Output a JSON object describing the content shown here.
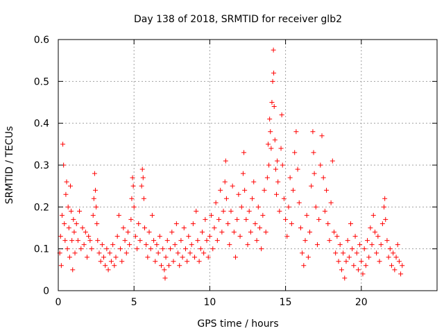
{
  "chart_data": {
    "type": "scatter",
    "title": "Day 138 of 2018, SRMTID for receiver glb2",
    "xlabel": "GPS time / hours",
    "ylabel": "SRMTID / TECUs",
    "xlim": [
      0,
      25
    ],
    "ylim": [
      0,
      0.6
    ],
    "xticks": [
      0,
      5,
      10,
      15,
      20
    ],
    "yticks": [
      0,
      0.1,
      0.2,
      0.3,
      0.4,
      0.5,
      0.6
    ],
    "xtick_labels": [
      "0",
      "5",
      "10",
      "15",
      "20"
    ],
    "ytick_labels": [
      "0",
      "0.1",
      "0.2",
      "0.3",
      "0.4",
      "0.5",
      "0.6"
    ],
    "grid": true,
    "marker": "+",
    "series": [
      {
        "name": "SRMTID",
        "color": "#ff0000",
        "points": [
          [
            0.1,
            0.09
          ],
          [
            0.15,
            0.13
          ],
          [
            0.2,
            0.06
          ],
          [
            0.25,
            0.18
          ],
          [
            0.3,
            0.35
          ],
          [
            0.35,
            0.3
          ],
          [
            0.4,
            0.16
          ],
          [
            0.45,
            0.12
          ],
          [
            0.5,
            0.23
          ],
          [
            0.55,
            0.26
          ],
          [
            0.6,
            0.1
          ],
          [
            0.65,
            0.2
          ],
          [
            0.7,
            0.15
          ],
          [
            0.75,
            0.08
          ],
          [
            0.8,
            0.25
          ],
          [
            0.85,
            0.19
          ],
          [
            0.9,
            0.12
          ],
          [
            0.95,
            0.05
          ],
          [
            1.0,
            0.17
          ],
          [
            1.05,
            0.14
          ],
          [
            1.1,
            0.09
          ],
          [
            1.2,
            0.16
          ],
          [
            1.3,
            0.12
          ],
          [
            1.4,
            0.19
          ],
          [
            1.5,
            0.1
          ],
          [
            1.6,
            0.15
          ],
          [
            1.7,
            0.11
          ],
          [
            1.8,
            0.14
          ],
          [
            1.9,
            0.08
          ],
          [
            2.0,
            0.13
          ],
          [
            2.1,
            0.12
          ],
          [
            2.2,
            0.1
          ],
          [
            2.3,
            0.18
          ],
          [
            2.35,
            0.22
          ],
          [
            2.4,
            0.28
          ],
          [
            2.45,
            0.24
          ],
          [
            2.5,
            0.2
          ],
          [
            2.55,
            0.16
          ],
          [
            2.6,
            0.12
          ],
          [
            2.7,
            0.09
          ],
          [
            2.8,
            0.07
          ],
          [
            2.9,
            0.11
          ],
          [
            3.0,
            0.08
          ],
          [
            3.1,
            0.06
          ],
          [
            3.2,
            0.1
          ],
          [
            3.3,
            0.05
          ],
          [
            3.4,
            0.09
          ],
          [
            3.5,
            0.07
          ],
          [
            3.6,
            0.11
          ],
          [
            3.7,
            0.06
          ],
          [
            3.8,
            0.08
          ],
          [
            3.9,
            0.13
          ],
          [
            4.0,
            0.18
          ],
          [
            4.1,
            0.1
          ],
          [
            4.2,
            0.07
          ],
          [
            4.3,
            0.15
          ],
          [
            4.4,
            0.12
          ],
          [
            4.5,
            0.09
          ],
          [
            4.6,
            0.14
          ],
          [
            4.7,
            0.11
          ],
          [
            4.8,
            0.17
          ],
          [
            4.85,
            0.22
          ],
          [
            4.9,
            0.27
          ],
          [
            4.95,
            0.25
          ],
          [
            5.0,
            0.2
          ],
          [
            5.1,
            0.13
          ],
          [
            5.2,
            0.1
          ],
          [
            5.3,
            0.16
          ],
          [
            5.4,
            0.12
          ],
          [
            5.5,
            0.25
          ],
          [
            5.55,
            0.29
          ],
          [
            5.6,
            0.27
          ],
          [
            5.65,
            0.22
          ],
          [
            5.7,
            0.15
          ],
          [
            5.8,
            0.11
          ],
          [
            5.9,
            0.08
          ],
          [
            6.0,
            0.14
          ],
          [
            6.1,
            0.1
          ],
          [
            6.2,
            0.18
          ],
          [
            6.3,
            0.12
          ],
          [
            6.4,
            0.07
          ],
          [
            6.5,
            0.11
          ],
          [
            6.6,
            0.09
          ],
          [
            6.7,
            0.13
          ],
          [
            6.8,
            0.06
          ],
          [
            6.9,
            0.1
          ],
          [
            7.0,
            0.05
          ],
          [
            7.05,
            0.03
          ],
          [
            7.1,
            0.08
          ],
          [
            7.2,
            0.12
          ],
          [
            7.3,
            0.06
          ],
          [
            7.4,
            0.1
          ],
          [
            7.5,
            0.14
          ],
          [
            7.6,
            0.07
          ],
          [
            7.7,
            0.11
          ],
          [
            7.8,
            0.16
          ],
          [
            7.9,
            0.09
          ],
          [
            8.0,
            0.06
          ],
          [
            8.1,
            0.12
          ],
          [
            8.2,
            0.08
          ],
          [
            8.3,
            0.15
          ],
          [
            8.4,
            0.1
          ],
          [
            8.5,
            0.07
          ],
          [
            8.6,
            0.13
          ],
          [
            8.7,
            0.09
          ],
          [
            8.8,
            0.11
          ],
          [
            8.9,
            0.16
          ],
          [
            9.0,
            0.08
          ],
          [
            9.1,
            0.19
          ],
          [
            9.2,
            0.12
          ],
          [
            9.3,
            0.07
          ],
          [
            9.4,
            0.1
          ],
          [
            9.5,
            0.14
          ],
          [
            9.6,
            0.09
          ],
          [
            9.7,
            0.17
          ],
          [
            9.8,
            0.12
          ],
          [
            9.9,
            0.08
          ],
          [
            10.0,
            0.13
          ],
          [
            10.1,
            0.18
          ],
          [
            10.2,
            0.1
          ],
          [
            10.3,
            0.15
          ],
          [
            10.4,
            0.21
          ],
          [
            10.5,
            0.12
          ],
          [
            10.6,
            0.17
          ],
          [
            10.7,
            0.24
          ],
          [
            10.8,
            0.14
          ],
          [
            10.9,
            0.19
          ],
          [
            11.0,
            0.26
          ],
          [
            11.05,
            0.31
          ],
          [
            11.1,
            0.22
          ],
          [
            11.2,
            0.16
          ],
          [
            11.3,
            0.11
          ],
          [
            11.4,
            0.19
          ],
          [
            11.5,
            0.25
          ],
          [
            11.6,
            0.14
          ],
          [
            11.7,
            0.08
          ],
          [
            11.8,
            0.17
          ],
          [
            11.9,
            0.23
          ],
          [
            12.0,
            0.13
          ],
          [
            12.1,
            0.2
          ],
          [
            12.2,
            0.28
          ],
          [
            12.25,
            0.33
          ],
          [
            12.3,
            0.24
          ],
          [
            12.4,
            0.17
          ],
          [
            12.5,
            0.11
          ],
          [
            12.6,
            0.19
          ],
          [
            12.7,
            0.14
          ],
          [
            12.8,
            0.22
          ],
          [
            12.9,
            0.26
          ],
          [
            13.0,
            0.16
          ],
          [
            13.1,
            0.12
          ],
          [
            13.2,
            0.2
          ],
          [
            13.3,
            0.15
          ],
          [
            13.4,
            0.1
          ],
          [
            13.5,
            0.18
          ],
          [
            13.6,
            0.24
          ],
          [
            13.7,
            0.14
          ],
          [
            13.8,
            0.27
          ],
          [
            13.85,
            0.35
          ],
          [
            13.9,
            0.3
          ],
          [
            13.95,
            0.41
          ],
          [
            14.0,
            0.38
          ],
          [
            14.05,
            0.34
          ],
          [
            14.1,
            0.45
          ],
          [
            14.15,
            0.5
          ],
          [
            14.2,
            0.575
          ],
          [
            14.22,
            0.52
          ],
          [
            14.25,
            0.44
          ],
          [
            14.3,
            0.36
          ],
          [
            14.35,
            0.29
          ],
          [
            14.4,
            0.23
          ],
          [
            14.45,
            0.31
          ],
          [
            14.5,
            0.26
          ],
          [
            14.6,
            0.19
          ],
          [
            14.7,
            0.34
          ],
          [
            14.75,
            0.42
          ],
          [
            14.8,
            0.3
          ],
          [
            14.9,
            0.22
          ],
          [
            15.0,
            0.17
          ],
          [
            15.1,
            0.13
          ],
          [
            15.2,
            0.2
          ],
          [
            15.3,
            0.27
          ],
          [
            15.4,
            0.16
          ],
          [
            15.5,
            0.24
          ],
          [
            15.6,
            0.33
          ],
          [
            15.7,
            0.38
          ],
          [
            15.8,
            0.29
          ],
          [
            15.9,
            0.21
          ],
          [
            16.0,
            0.15
          ],
          [
            16.1,
            0.09
          ],
          [
            16.2,
            0.06
          ],
          [
            16.3,
            0.12
          ],
          [
            16.4,
            0.18
          ],
          [
            16.5,
            0.08
          ],
          [
            16.6,
            0.14
          ],
          [
            16.7,
            0.25
          ],
          [
            16.8,
            0.38
          ],
          [
            16.85,
            0.33
          ],
          [
            16.9,
            0.28
          ],
          [
            17.0,
            0.2
          ],
          [
            17.1,
            0.11
          ],
          [
            17.2,
            0.17
          ],
          [
            17.3,
            0.3
          ],
          [
            17.4,
            0.37
          ],
          [
            17.5,
            0.27
          ],
          [
            17.6,
            0.19
          ],
          [
            17.7,
            0.24
          ],
          [
            17.8,
            0.16
          ],
          [
            17.9,
            0.12
          ],
          [
            18.0,
            0.21
          ],
          [
            18.1,
            0.31
          ],
          [
            18.2,
            0.14
          ],
          [
            18.3,
            0.09
          ],
          [
            18.4,
            0.13
          ],
          [
            18.5,
            0.07
          ],
          [
            18.6,
            0.11
          ],
          [
            18.7,
            0.05
          ],
          [
            18.8,
            0.09
          ],
          [
            18.9,
            0.03
          ],
          [
            19.0,
            0.07
          ],
          [
            19.1,
            0.12
          ],
          [
            19.2,
            0.08
          ],
          [
            19.3,
            0.16
          ],
          [
            19.4,
            0.1
          ],
          [
            19.5,
            0.06
          ],
          [
            19.6,
            0.13
          ],
          [
            19.7,
            0.09
          ],
          [
            19.8,
            0.05
          ],
          [
            19.9,
            0.11
          ],
          [
            20.0,
            0.07
          ],
          [
            20.1,
            0.04
          ],
          [
            20.2,
            0.1
          ],
          [
            20.3,
            0.06
          ],
          [
            20.4,
            0.12
          ],
          [
            20.5,
            0.08
          ],
          [
            20.6,
            0.15
          ],
          [
            20.7,
            0.11
          ],
          [
            20.8,
            0.18
          ],
          [
            20.9,
            0.14
          ],
          [
            21.0,
            0.09
          ],
          [
            21.1,
            0.13
          ],
          [
            21.2,
            0.07
          ],
          [
            21.3,
            0.11
          ],
          [
            21.4,
            0.16
          ],
          [
            21.5,
            0.2
          ],
          [
            21.55,
            0.22
          ],
          [
            21.6,
            0.17
          ],
          [
            21.7,
            0.12
          ],
          [
            21.8,
            0.08
          ],
          [
            21.9,
            0.1
          ],
          [
            22.0,
            0.06
          ],
          [
            22.1,
            0.09
          ],
          [
            22.2,
            0.05
          ],
          [
            22.3,
            0.08
          ],
          [
            22.4,
            0.11
          ],
          [
            22.5,
            0.07
          ],
          [
            22.6,
            0.04
          ],
          [
            22.7,
            0.06
          ]
        ]
      }
    ]
  }
}
